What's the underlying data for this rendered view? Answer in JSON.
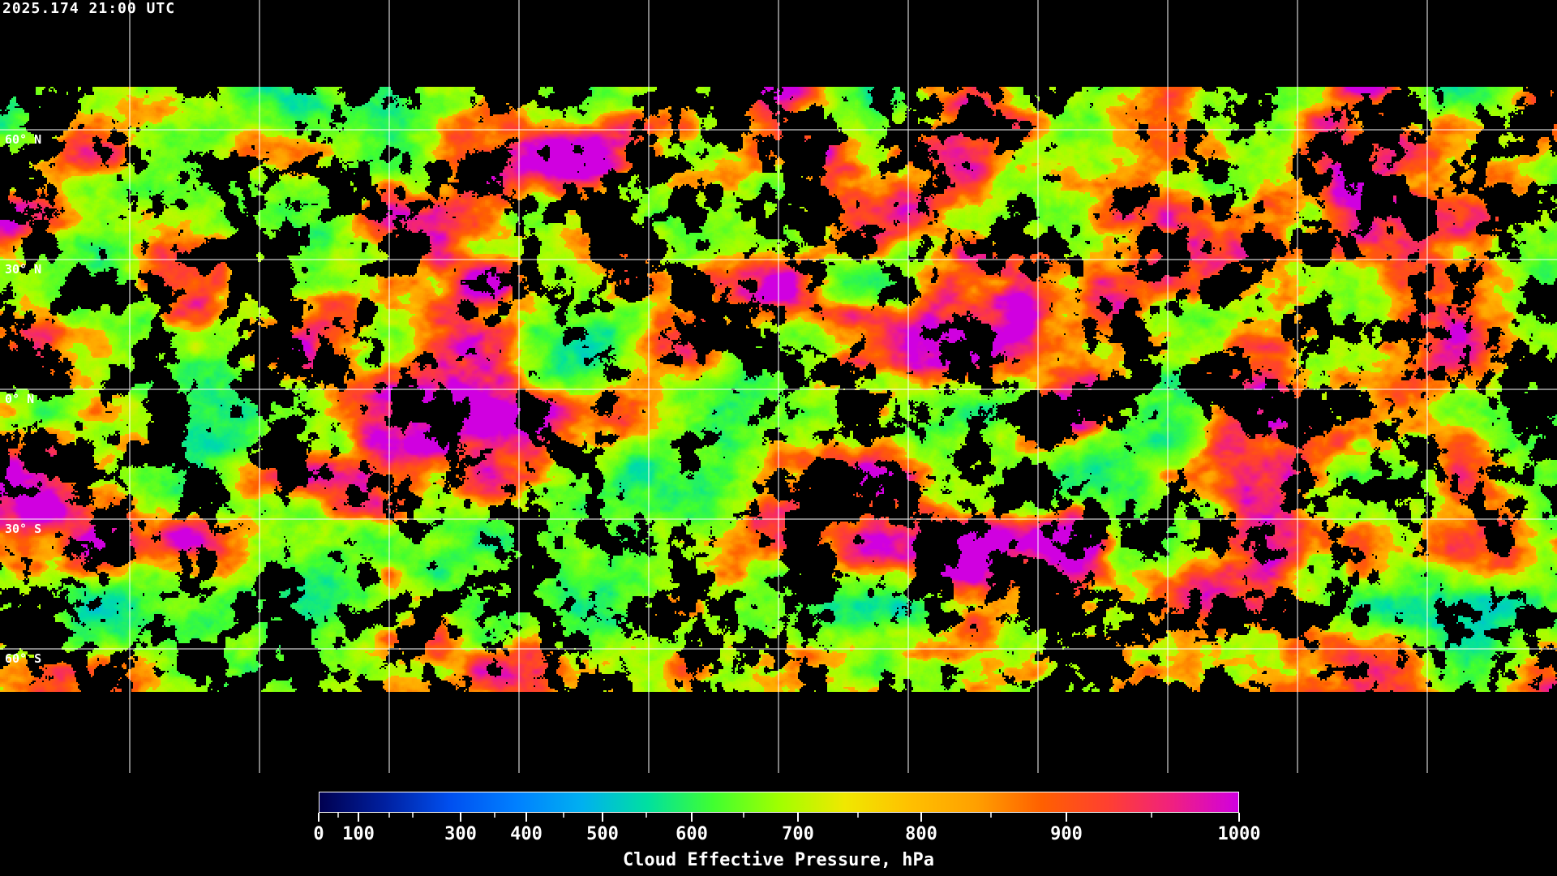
{
  "header": {
    "timestamp": "2025.174 21:00 UTC"
  },
  "map": {
    "projection": "equirectangular",
    "grid_spacing_deg": 30,
    "lat_labels": [
      "60° N",
      "30° N",
      "0° N",
      "30° S",
      "60° S"
    ],
    "gridline_color": "#ffffff",
    "coastline_color": "#ffffff",
    "no_data_color": "#000000"
  },
  "colorbar": {
    "title": "Cloud Effective Pressure, hPa",
    "range": [
      0,
      1000
    ],
    "tick_labels": [
      "0",
      "100",
      "300",
      "400",
      "500",
      "600",
      "700",
      "800",
      "900",
      "1000"
    ],
    "colors": [
      "#000050",
      "#0020a0",
      "#0050f0",
      "#0080ff",
      "#00b0f0",
      "#00e0a0",
      "#40ff30",
      "#a0ff00",
      "#f0e800",
      "#ffc000",
      "#ffa000",
      "#ff6000",
      "#ff4030",
      "#f02080",
      "#d000e0"
    ]
  }
}
